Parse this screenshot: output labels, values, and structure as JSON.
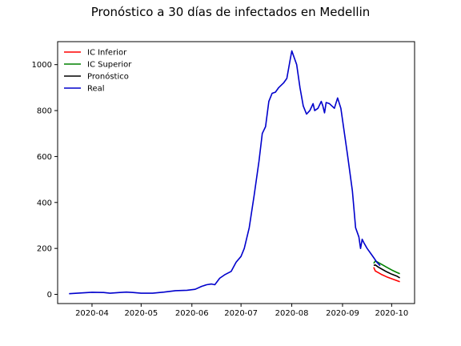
{
  "chart_data": {
    "type": "line",
    "title": "Pronóstico a 30 días de infectados en Medellin",
    "xlabel": "",
    "ylabel": "",
    "x_axis": {
      "type": "date",
      "range": [
        "2020-03-11",
        "2020-10-15"
      ],
      "ticks": [
        {
          "date": "2020-04-01",
          "label": "2020-04"
        },
        {
          "date": "2020-05-01",
          "label": "2020-05"
        },
        {
          "date": "2020-06-01",
          "label": "2020-06"
        },
        {
          "date": "2020-07-01",
          "label": "2020-07"
        },
        {
          "date": "2020-08-01",
          "label": "2020-08"
        },
        {
          "date": "2020-09-01",
          "label": "2020-09"
        },
        {
          "date": "2020-10-01",
          "label": "2020-10"
        }
      ]
    },
    "y_axis": {
      "range": [
        -40,
        1100
      ],
      "ticks": [
        0,
        200,
        400,
        600,
        800,
        1000
      ]
    },
    "grid": false,
    "legend_position": "top-left",
    "series": [
      {
        "name": "IC Inferior",
        "color": "#ff0000",
        "points": [
          [
            "2020-09-20",
            118
          ],
          [
            "2020-09-21",
            102
          ],
          [
            "2020-09-23",
            94
          ],
          [
            "2020-09-25",
            86
          ],
          [
            "2020-09-28",
            76
          ],
          [
            "2020-10-01",
            68
          ],
          [
            "2020-10-04",
            60
          ],
          [
            "2020-10-06",
            55
          ]
        ]
      },
      {
        "name": "IC Superior",
        "color": "#008000",
        "points": [
          [
            "2020-09-20",
            135
          ],
          [
            "2020-09-21",
            145
          ],
          [
            "2020-09-23",
            138
          ],
          [
            "2020-09-25",
            130
          ],
          [
            "2020-09-28",
            118
          ],
          [
            "2020-10-01",
            106
          ],
          [
            "2020-10-04",
            96
          ],
          [
            "2020-10-06",
            90
          ]
        ]
      },
      {
        "name": "Pronóstico",
        "color": "#000000",
        "points": [
          [
            "2020-09-20",
            126
          ],
          [
            "2020-09-21",
            128
          ],
          [
            "2020-09-23",
            118
          ],
          [
            "2020-09-25",
            110
          ],
          [
            "2020-09-28",
            98
          ],
          [
            "2020-10-01",
            88
          ],
          [
            "2020-10-04",
            80
          ],
          [
            "2020-10-06",
            72
          ]
        ]
      },
      {
        "name": "Real",
        "color": "#0000cc",
        "points": [
          [
            "2020-03-18",
            3
          ],
          [
            "2020-03-25",
            6
          ],
          [
            "2020-04-01",
            9
          ],
          [
            "2020-04-08",
            8
          ],
          [
            "2020-04-12",
            5
          ],
          [
            "2020-04-18",
            8
          ],
          [
            "2020-04-22",
            10
          ],
          [
            "2020-04-26",
            8
          ],
          [
            "2020-05-01",
            5
          ],
          [
            "2020-05-08",
            5
          ],
          [
            "2020-05-15",
            10
          ],
          [
            "2020-05-22",
            16
          ],
          [
            "2020-05-29",
            18
          ],
          [
            "2020-06-03",
            22
          ],
          [
            "2020-06-07",
            35
          ],
          [
            "2020-06-10",
            42
          ],
          [
            "2020-06-13",
            45
          ],
          [
            "2020-06-15",
            42
          ],
          [
            "2020-06-18",
            70
          ],
          [
            "2020-06-21",
            85
          ],
          [
            "2020-06-25",
            100
          ],
          [
            "2020-06-28",
            140
          ],
          [
            "2020-07-01",
            165
          ],
          [
            "2020-07-03",
            200
          ],
          [
            "2020-07-06",
            290
          ],
          [
            "2020-07-09",
            430
          ],
          [
            "2020-07-12",
            580
          ],
          [
            "2020-07-14",
            700
          ],
          [
            "2020-07-16",
            730
          ],
          [
            "2020-07-18",
            840
          ],
          [
            "2020-07-20",
            875
          ],
          [
            "2020-07-22",
            880
          ],
          [
            "2020-07-24",
            900
          ],
          [
            "2020-07-27",
            920
          ],
          [
            "2020-07-29",
            940
          ],
          [
            "2020-07-31",
            1020
          ],
          [
            "2020-08-01",
            1060
          ],
          [
            "2020-08-02",
            1040
          ],
          [
            "2020-08-04",
            1000
          ],
          [
            "2020-08-06",
            900
          ],
          [
            "2020-08-08",
            820
          ],
          [
            "2020-08-10",
            785
          ],
          [
            "2020-08-12",
            800
          ],
          [
            "2020-08-14",
            830
          ],
          [
            "2020-08-15",
            800
          ],
          [
            "2020-08-17",
            810
          ],
          [
            "2020-08-19",
            840
          ],
          [
            "2020-08-20",
            820
          ],
          [
            "2020-08-21",
            790
          ],
          [
            "2020-08-22",
            835
          ],
          [
            "2020-08-24",
            830
          ],
          [
            "2020-08-27",
            810
          ],
          [
            "2020-08-29",
            855
          ],
          [
            "2020-08-31",
            810
          ],
          [
            "2020-09-04",
            610
          ],
          [
            "2020-09-07",
            450
          ],
          [
            "2020-09-09",
            290
          ],
          [
            "2020-09-11",
            250
          ],
          [
            "2020-09-12",
            200
          ],
          [
            "2020-09-13",
            240
          ],
          [
            "2020-09-14",
            225
          ],
          [
            "2020-09-16",
            200
          ],
          [
            "2020-09-18",
            180
          ],
          [
            "2020-09-20",
            160
          ],
          [
            "2020-09-22",
            140
          ],
          [
            "2020-09-24",
            125
          ]
        ]
      }
    ]
  }
}
